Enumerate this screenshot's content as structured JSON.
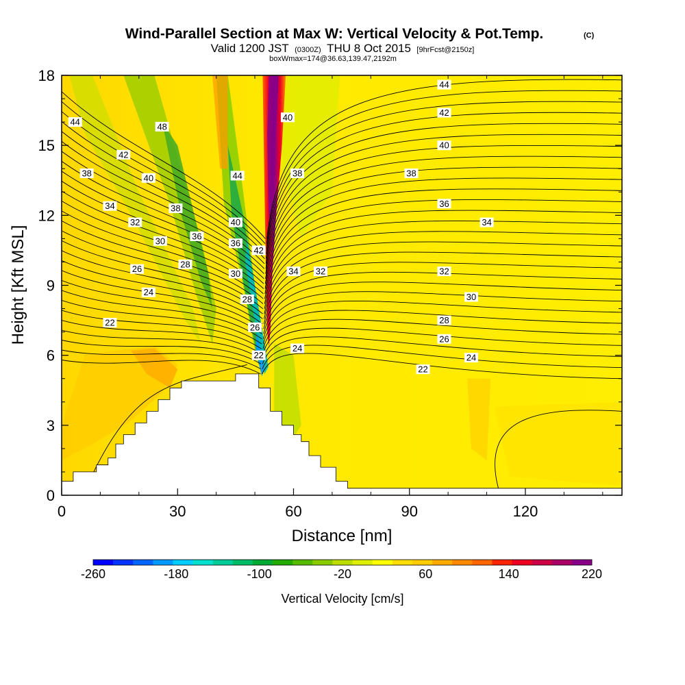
{
  "title": {
    "main": "Wind-Parallel Section at Max W: Vertical Velocity & Pot.Temp.",
    "copyright": "(C)",
    "valid_prefix": "Valid 1200 JST",
    "valid_z": "(0300Z)",
    "valid_date": "THU 8 Oct 2015",
    "forecast": "[9hrFcst@2150z]",
    "box": "boxWmax=174@36.63,139.47,2192m"
  },
  "chart_data": {
    "type": "heatmap",
    "xlabel": "Distance [nm]",
    "ylabel": "Height [Kft MSL]",
    "xlim": [
      0,
      145
    ],
    "ylim": [
      0,
      18
    ],
    "x_ticks": [
      "0",
      "30",
      "60",
      "90",
      "120"
    ],
    "x_tick_values": [
      0,
      30,
      60,
      90,
      120
    ],
    "y_ticks": [
      "0",
      "3",
      "6",
      "9",
      "12",
      "15",
      "18"
    ],
    "y_tick_values": [
      0,
      3,
      6,
      9,
      12,
      15,
      18
    ],
    "colorbar": {
      "title": "Vertical Velocity [cm/s]",
      "labels": [
        "-260",
        "-180",
        "-100",
        "-20",
        "60",
        "140",
        "220"
      ],
      "min": -260,
      "max": 220,
      "step": 20,
      "colors": [
        "#0000ff",
        "#0033ff",
        "#0066ff",
        "#0099ff",
        "#00ccff",
        "#00e0cc",
        "#00cc99",
        "#00bb66",
        "#00aa33",
        "#22aa00",
        "#55bb00",
        "#88cc00",
        "#bbdd00",
        "#ddee00",
        "#ffff00",
        "#ffdd00",
        "#ffcc00",
        "#ffaa00",
        "#ff8800",
        "#ff6600",
        "#ff2200",
        "#ee0022",
        "#cc0044",
        "#aa0066",
        "#880088"
      ]
    },
    "theta_labels": [
      {
        "text": "44",
        "x": 3.5,
        "y": 16.0
      },
      {
        "text": "48",
        "x": 26,
        "y": 15.8
      },
      {
        "text": "42",
        "x": 16,
        "y": 14.6
      },
      {
        "text": "38",
        "x": 6.5,
        "y": 13.8
      },
      {
        "text": "40",
        "x": 22.5,
        "y": 13.6
      },
      {
        "text": "34",
        "x": 12.5,
        "y": 12.4
      },
      {
        "text": "38",
        "x": 29.5,
        "y": 12.3
      },
      {
        "text": "32",
        "x": 19,
        "y": 11.7
      },
      {
        "text": "36",
        "x": 35,
        "y": 11.1
      },
      {
        "text": "30",
        "x": 25.5,
        "y": 10.9
      },
      {
        "text": "28",
        "x": 32,
        "y": 9.9
      },
      {
        "text": "26",
        "x": 19.5,
        "y": 9.7
      },
      {
        "text": "24",
        "x": 22.5,
        "y": 8.7
      },
      {
        "text": "22",
        "x": 12.5,
        "y": 7.4
      },
      {
        "text": "44",
        "x": 45.5,
        "y": 13.7
      },
      {
        "text": "40",
        "x": 45,
        "y": 11.7
      },
      {
        "text": "36",
        "x": 45,
        "y": 10.8
      },
      {
        "text": "42",
        "x": 51,
        "y": 10.5
      },
      {
        "text": "30",
        "x": 45,
        "y": 9.5
      },
      {
        "text": "28",
        "x": 48,
        "y": 8.4
      },
      {
        "text": "26",
        "x": 50,
        "y": 7.2
      },
      {
        "text": "22",
        "x": 51,
        "y": 6.0
      },
      {
        "text": "40",
        "x": 58.5,
        "y": 16.2
      },
      {
        "text": "38",
        "x": 61,
        "y": 13.8
      },
      {
        "text": "34",
        "x": 60,
        "y": 9.6
      },
      {
        "text": "32",
        "x": 67,
        "y": 9.6
      },
      {
        "text": "24",
        "x": 61,
        "y": 6.3
      },
      {
        "text": "44",
        "x": 99,
        "y": 17.6
      },
      {
        "text": "42",
        "x": 99,
        "y": 16.4
      },
      {
        "text": "40",
        "x": 99,
        "y": 15.0
      },
      {
        "text": "38",
        "x": 90.5,
        "y": 13.8
      },
      {
        "text": "36",
        "x": 99,
        "y": 12.5
      },
      {
        "text": "34",
        "x": 110,
        "y": 11.7
      },
      {
        "text": "32",
        "x": 99,
        "y": 9.6
      },
      {
        "text": "30",
        "x": 106,
        "y": 8.5
      },
      {
        "text": "28",
        "x": 99,
        "y": 7.5
      },
      {
        "text": "26",
        "x": 99,
        "y": 6.7
      },
      {
        "text": "24",
        "x": 106,
        "y": 5.9
      },
      {
        "text": "22",
        "x": 93.5,
        "y": 5.4
      }
    ],
    "terrain": [
      [
        0,
        0.6
      ],
      [
        3,
        1.0
      ],
      [
        9,
        1.3
      ],
      [
        12,
        1.6
      ],
      [
        14,
        2.2
      ],
      [
        16,
        2.6
      ],
      [
        19,
        3.1
      ],
      [
        22,
        3.6
      ],
      [
        25,
        4.1
      ],
      [
        28,
        4.6
      ],
      [
        31,
        4.9
      ],
      [
        45,
        5.2
      ],
      [
        51,
        4.6
      ],
      [
        54,
        3.6
      ],
      [
        57,
        3.0
      ],
      [
        60,
        2.6
      ],
      [
        62,
        2.3
      ],
      [
        64,
        1.7
      ],
      [
        67,
        1.2
      ],
      [
        71,
        0.6
      ],
      [
        74,
        0.3
      ],
      [
        145,
        0.3
      ]
    ]
  }
}
